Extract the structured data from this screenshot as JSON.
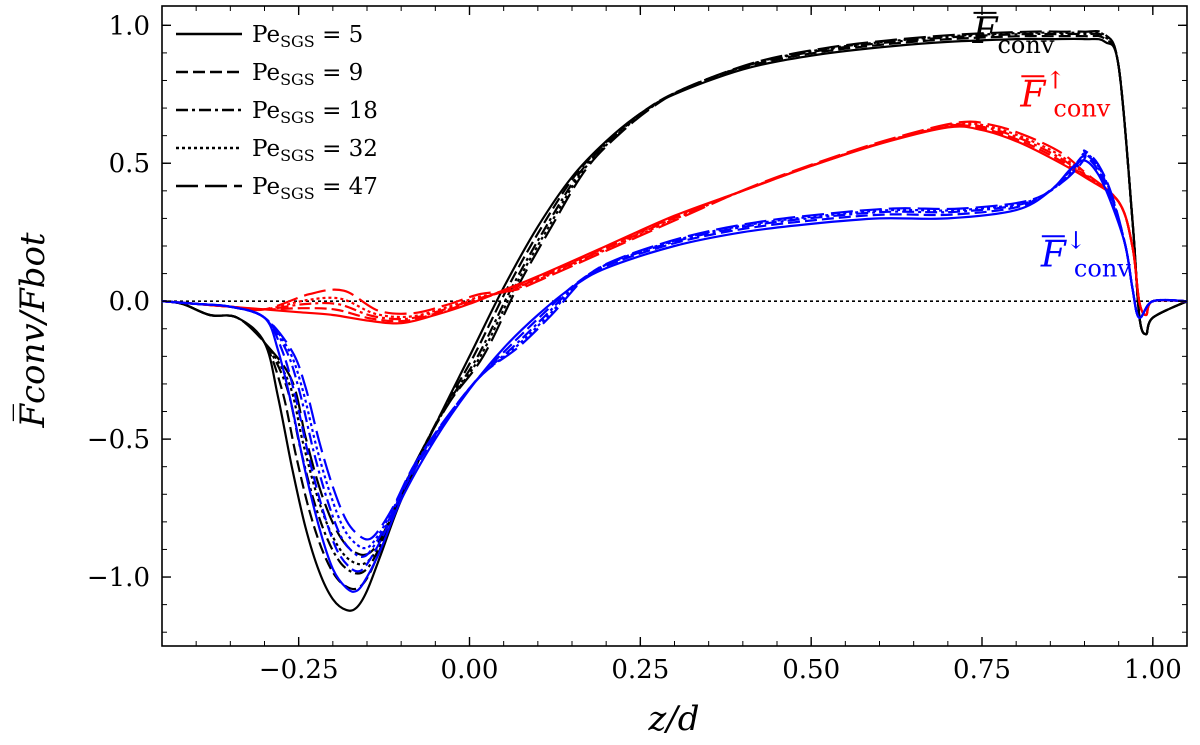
{
  "chart_data": {
    "type": "line",
    "xlabel": "z/d",
    "ylabel": "F̅conv/Fbot",
    "xlim": [
      -0.45,
      1.05
    ],
    "ylim": [
      -1.25,
      1.07
    ],
    "x_ticks": [
      -0.25,
      0.0,
      0.25,
      0.5,
      0.75,
      1.0
    ],
    "x_tick_labels": [
      "−0.25",
      "0.00",
      "0.25",
      "0.50",
      "0.75",
      "1.00"
    ],
    "y_ticks": [
      -1.0,
      -0.5,
      0.0,
      0.5,
      1.0
    ],
    "y_tick_labels": [
      "−1.0",
      "−0.5",
      "0.0",
      "0.5",
      "1.0"
    ],
    "reference_line": {
      "y": 0.0,
      "style": "dotted"
    },
    "legend": {
      "placement": "top-left",
      "label_prefix": "Pe",
      "label_sub": "SGS",
      "entries": [
        {
          "label": "Pe_SGS = 5",
          "value": "= 5",
          "dash": "solid"
        },
        {
          "label": "Pe_SGS = 9",
          "value": "= 9",
          "dash": "dashed"
        },
        {
          "label": "Pe_SGS = 18",
          "value": "= 18",
          "dash": "dashdot"
        },
        {
          "label": "Pe_SGS = 32",
          "value": "= 32",
          "dash": "dotted"
        },
        {
          "label": "Pe_SGS = 47",
          "value": "= 47",
          "dash": "longdash"
        }
      ]
    },
    "annotations": [
      {
        "id": "total",
        "main": "F",
        "sub": "conv",
        "sup": "",
        "color": "#000000",
        "near": [
          0.78,
          0.98
        ]
      },
      {
        "id": "upflow",
        "main": "F",
        "sub": "conv",
        "sup": "↑",
        "color": "#ff0000",
        "near": [
          0.85,
          0.75
        ]
      },
      {
        "id": "downflow",
        "main": "F",
        "sub": "conv",
        "sup": "↓",
        "color": "#0000ff",
        "near": [
          0.88,
          0.17
        ]
      }
    ],
    "families": [
      {
        "name": "total",
        "color": "#000000",
        "x": [
          -0.45,
          -0.42,
          -0.38,
          -0.34,
          -0.3,
          -0.28,
          -0.26,
          -0.24,
          -0.22,
          -0.2,
          -0.18,
          -0.165,
          -0.15,
          -0.13,
          -0.1,
          -0.05,
          0.0,
          0.05,
          0.1,
          0.15,
          0.2,
          0.25,
          0.3,
          0.4,
          0.5,
          0.6,
          0.7,
          0.8,
          0.85,
          0.9,
          0.93,
          0.95,
          0.97,
          0.98,
          0.99,
          1.0,
          1.05
        ],
        "base": [
          0.0,
          -0.01,
          -0.05,
          -0.06,
          -0.15,
          -0.35,
          -0.6,
          -0.82,
          -0.98,
          -1.08,
          -1.12,
          -1.11,
          -1.05,
          -0.92,
          -0.72,
          -0.45,
          -0.2,
          0.05,
          0.27,
          0.45,
          0.58,
          0.68,
          0.75,
          0.84,
          0.89,
          0.92,
          0.94,
          0.95,
          0.95,
          0.95,
          0.94,
          0.85,
          0.3,
          -0.05,
          -0.12,
          -0.06,
          0.0
        ],
        "series": [
          {
            "pe": "5",
            "peak_scale": 1.0,
            "dx": 0.0
          },
          {
            "pe": "9",
            "peak_scale": 0.93,
            "dx": 0.006
          },
          {
            "pe": "18",
            "peak_scale": 0.88,
            "dx": 0.012
          },
          {
            "pe": "32",
            "peak_scale": 0.85,
            "dx": 0.016
          },
          {
            "pe": "47",
            "peak_scale": 0.82,
            "dx": 0.02
          }
        ]
      },
      {
        "name": "up",
        "color": "#ff0000",
        "x": [
          -0.45,
          -0.4,
          -0.35,
          -0.3,
          -0.25,
          -0.2,
          -0.15,
          -0.1,
          -0.05,
          0.0,
          0.05,
          0.1,
          0.2,
          0.3,
          0.4,
          0.5,
          0.6,
          0.7,
          0.75,
          0.8,
          0.85,
          0.9,
          0.95,
          0.97,
          0.98,
          0.99,
          1.0,
          1.05
        ],
        "base": [
          0.0,
          -0.01,
          -0.02,
          -0.03,
          -0.04,
          -0.05,
          -0.07,
          -0.08,
          -0.05,
          -0.01,
          0.04,
          0.09,
          0.2,
          0.31,
          0.4,
          0.49,
          0.57,
          0.63,
          0.62,
          0.58,
          0.52,
          0.45,
          0.36,
          0.2,
          0.0,
          -0.05,
          0.0,
          0.0
        ],
        "series": [
          {
            "pe": "5",
            "peak_scale": 1.0,
            "dx": 0.0
          },
          {
            "pe": "9",
            "peak_scale": 0.8,
            "dx": 0.004
          },
          {
            "pe": "18",
            "peak_scale": 0.6,
            "dx": 0.008
          },
          {
            "pe": "32",
            "peak_scale": 0.4,
            "dx": 0.012
          },
          {
            "pe": "47",
            "peak_scale": 0.1,
            "dx": 0.016
          }
        ]
      },
      {
        "name": "down",
        "color": "#0000ff",
        "x": [
          -0.45,
          -0.4,
          -0.35,
          -0.3,
          -0.28,
          -0.26,
          -0.24,
          -0.22,
          -0.2,
          -0.18,
          -0.165,
          -0.15,
          -0.13,
          -0.1,
          -0.05,
          0.0,
          0.05,
          0.1,
          0.15,
          0.2,
          0.3,
          0.4,
          0.5,
          0.6,
          0.7,
          0.8,
          0.85,
          0.88,
          0.9,
          0.92,
          0.94,
          0.96,
          0.97,
          0.98,
          1.0,
          1.05
        ],
        "base": [
          0.0,
          -0.01,
          -0.02,
          -0.06,
          -0.18,
          -0.38,
          -0.62,
          -0.82,
          -0.97,
          -1.04,
          -1.05,
          -1.0,
          -0.9,
          -0.72,
          -0.5,
          -0.32,
          -0.17,
          -0.05,
          0.05,
          0.12,
          0.2,
          0.25,
          0.28,
          0.3,
          0.3,
          0.33,
          0.4,
          0.48,
          0.51,
          0.46,
          0.35,
          0.2,
          0.05,
          -0.06,
          0.0,
          0.0
        ],
        "series": [
          {
            "pe": "5",
            "peak_scale": 1.0,
            "dx": 0.0
          },
          {
            "pe": "9",
            "peak_scale": 0.93,
            "dx": 0.006
          },
          {
            "pe": "18",
            "peak_scale": 0.88,
            "dx": 0.012
          },
          {
            "pe": "32",
            "peak_scale": 0.85,
            "dx": 0.016
          },
          {
            "pe": "47",
            "peak_scale": 0.82,
            "dx": 0.02
          }
        ]
      }
    ]
  }
}
